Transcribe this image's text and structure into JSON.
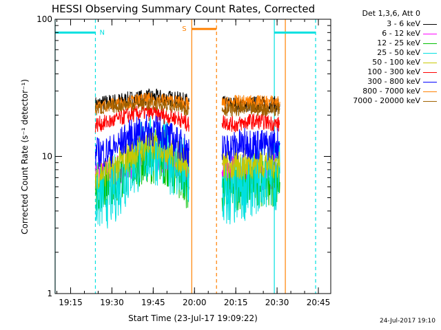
{
  "chart_data": {
    "type": "line",
    "title": "HESSI Observing Summary Count Rates, Corrected",
    "xlabel": "Start Time (23-Jul-17 19:09:22)",
    "ylabel": "Corrected Count Rate (s⁻¹ detector⁻¹)",
    "y_scale": "log",
    "ylim": [
      1,
      100
    ],
    "y_ticks": [
      1,
      10,
      100
    ],
    "y_tick_labels": [
      "1",
      "10",
      "100"
    ],
    "x_range_minutes": [
      "19:09:22",
      "20:49:30"
    ],
    "x_ticks": [
      "19:15",
      "19:30",
      "19:45",
      "20:00",
      "20:15",
      "20:30",
      "20:45"
    ],
    "grid": false,
    "legend_position": "right",
    "legend_header": "Det 1,3,6, Att 0",
    "series": [
      {
        "name": "3 - 6 keV",
        "color": "#000000",
        "segments": [
          {
            "x": [
              "19:24",
              "19:30",
              "19:36",
              "19:42",
              "19:48",
              "19:54",
              "19:58"
            ],
            "y": [
              24,
              25,
              26,
              27,
              27,
              26,
              25
            ]
          },
          {
            "x": [
              "20:10",
              "20:15",
              "20:20",
              "20:25",
              "20:31"
            ],
            "y": [
              24,
              24,
              24,
              24,
              24
            ]
          }
        ]
      },
      {
        "name": "6 - 12 keV",
        "color": "#ff00ff",
        "segments": [
          {
            "x": [
              "19:24",
              "19:30",
              "19:36",
              "19:42",
              "19:48",
              "19:54",
              "19:58"
            ],
            "y": [
              7.0,
              7.5,
              9.0,
              10.5,
              10.5,
              9.0,
              8.0
            ]
          },
          {
            "x": [
              "20:10",
              "20:15",
              "20:20",
              "20:25",
              "20:31"
            ],
            "y": [
              7.5,
              7.5,
              7.8,
              7.8,
              7.8
            ]
          }
        ]
      },
      {
        "name": "12 - 25 keV",
        "color": "#00c000",
        "segments": [
          {
            "x": [
              "19:24",
              "19:30",
              "19:36",
              "19:42",
              "19:48",
              "19:54",
              "19:58"
            ],
            "y": [
              6.0,
              6.5,
              8.0,
              9.5,
              9.5,
              7.5,
              6.0
            ]
          },
          {
            "x": [
              "20:10",
              "20:15",
              "20:20",
              "20:25",
              "20:31"
            ],
            "y": [
              5.5,
              6.0,
              6.5,
              6.5,
              6.5
            ]
          }
        ]
      },
      {
        "name": "25 - 50 keV",
        "color": "#00e0e0",
        "segments": [
          {
            "x": [
              "19:24",
              "19:30",
              "19:36",
              "19:42",
              "19:48",
              "19:54",
              "19:58"
            ],
            "y": [
              5.0,
              5.5,
              8.0,
              11.0,
              11.0,
              8.5,
              7.0
            ]
          },
          {
            "x": [
              "20:10",
              "20:15",
              "20:20",
              "20:25",
              "20:31"
            ],
            "y": [
              5.0,
              5.5,
              6.5,
              7.0,
              7.5
            ]
          }
        ]
      },
      {
        "name": "50 - 100 keV",
        "color": "#c8c800",
        "segments": [
          {
            "x": [
              "19:24",
              "19:30",
              "19:36",
              "19:42",
              "19:48",
              "19:54",
              "19:58"
            ],
            "y": [
              7.5,
              8.0,
              10.0,
              12.0,
              12.0,
              10.0,
              9.0
            ]
          },
          {
            "x": [
              "20:10",
              "20:15",
              "20:20",
              "20:25",
              "20:31"
            ],
            "y": [
              8.5,
              8.5,
              9.0,
              9.0,
              9.0
            ]
          }
        ]
      },
      {
        "name": "100 - 300 keV",
        "color": "#ff0000",
        "segments": [
          {
            "x": [
              "19:24",
              "19:30",
              "19:36",
              "19:42",
              "19:48",
              "19:54",
              "19:58"
            ],
            "y": [
              17,
              18,
              20,
              21,
              20,
              19,
              17
            ]
          },
          {
            "x": [
              "20:10",
              "20:15",
              "20:20",
              "20:25",
              "20:31"
            ],
            "y": [
              18,
              17,
              18,
              18,
              17
            ]
          }
        ]
      },
      {
        "name": "300 - 800 keV",
        "color": "#0000ff",
        "segments": [
          {
            "x": [
              "19:24",
              "19:30",
              "19:36",
              "19:42",
              "19:48",
              "19:54",
              "19:58"
            ],
            "y": [
              10.5,
              11.0,
              14.0,
              15.5,
              15.0,
              12.5,
              11.0
            ]
          },
          {
            "x": [
              "20:10",
              "20:15",
              "20:20",
              "20:25",
              "20:31"
            ],
            "y": [
              11.0,
              12.0,
              12.5,
              12.0,
              12.5
            ]
          }
        ]
      },
      {
        "name": "800 - 7000 keV",
        "color": "#ff8000",
        "segments": [
          {
            "x": [
              "19:24",
              "19:30",
              "19:36",
              "19:42",
              "19:48",
              "19:54",
              "19:58"
            ],
            "y": [
              23,
              24,
              25,
              26,
              26,
              25,
              24
            ]
          },
          {
            "x": [
              "20:10",
              "20:15",
              "20:20",
              "20:25",
              "20:31"
            ],
            "y": [
              24,
              25,
              25,
              25,
              25
            ]
          }
        ]
      },
      {
        "name": "7000 - 20000 keV",
        "color": "#a06000",
        "segments": [
          {
            "x": [
              "19:24",
              "19:30",
              "19:36",
              "19:42",
              "19:48",
              "19:54",
              "19:58"
            ],
            "y": [
              22,
              23,
              24,
              24,
              24,
              23,
              22
            ]
          },
          {
            "x": [
              "20:10",
              "20:15",
              "20:20",
              "20:25",
              "20:31"
            ],
            "y": [
              22,
              22,
              22,
              22,
              22
            ]
          }
        ]
      }
    ],
    "flags": [
      {
        "label": "N",
        "color": "#00e0e0",
        "intervals": [
          [
            "19:09:22",
            "19:24"
          ],
          [
            "20:29",
            "20:44"
          ]
        ],
        "y": 80
      },
      {
        "label": "S",
        "color": "#ff8000",
        "intervals": [
          [
            "19:59",
            "20:08"
          ]
        ],
        "y": 85
      }
    ],
    "vertical_lines": [
      {
        "t": "19:09:22",
        "color": "#00e0e0",
        "style": "solid"
      },
      {
        "t": "19:24",
        "color": "#00e0e0",
        "style": "dashed"
      },
      {
        "t": "19:59",
        "color": "#ff8000",
        "style": "solid"
      },
      {
        "t": "20:08",
        "color": "#ff8000",
        "style": "dashed"
      },
      {
        "t": "20:29",
        "color": "#00e0e0",
        "style": "solid"
      },
      {
        "t": "20:33",
        "color": "#ff8000",
        "style": "solid"
      },
      {
        "t": "20:44",
        "color": "#00e0e0",
        "style": "dashed"
      }
    ]
  },
  "timestamp": "24-Jul-2017 19:10"
}
